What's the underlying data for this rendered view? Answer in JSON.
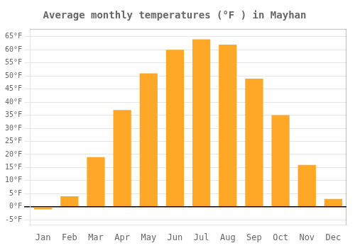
{
  "chart_data": {
    "type": "bar",
    "title": "Average monthly temperatures (°F ) in Mayhan",
    "categories": [
      "Jan",
      "Feb",
      "Mar",
      "Apr",
      "May",
      "Jun",
      "Jul",
      "Aug",
      "Sep",
      "Oct",
      "Nov",
      "Dec"
    ],
    "values": [
      -1,
      4,
      19,
      37,
      51,
      60,
      64,
      62,
      49,
      35,
      16,
      3
    ],
    "color": "#FFA726",
    "ylim": [
      -7,
      68
    ],
    "yticks": [
      {
        "value": -5,
        "label": "-5°F"
      },
      {
        "value": 0,
        "label": "0°F"
      },
      {
        "value": 5,
        "label": "5°F"
      },
      {
        "value": 10,
        "label": "10°F"
      },
      {
        "value": 15,
        "label": "15°F"
      },
      {
        "value": 20,
        "label": "20°F"
      },
      {
        "value": 25,
        "label": "25°F"
      },
      {
        "value": 30,
        "label": "30°F"
      },
      {
        "value": 35,
        "label": "35°F"
      },
      {
        "value": 40,
        "label": "40°F"
      },
      {
        "value": 45,
        "label": "45°F"
      },
      {
        "value": 50,
        "label": "50°F"
      },
      {
        "value": 55,
        "label": "55°F"
      },
      {
        "value": 60,
        "label": "60°F"
      },
      {
        "value": 65,
        "label": "65°F"
      }
    ],
    "grid": true
  }
}
